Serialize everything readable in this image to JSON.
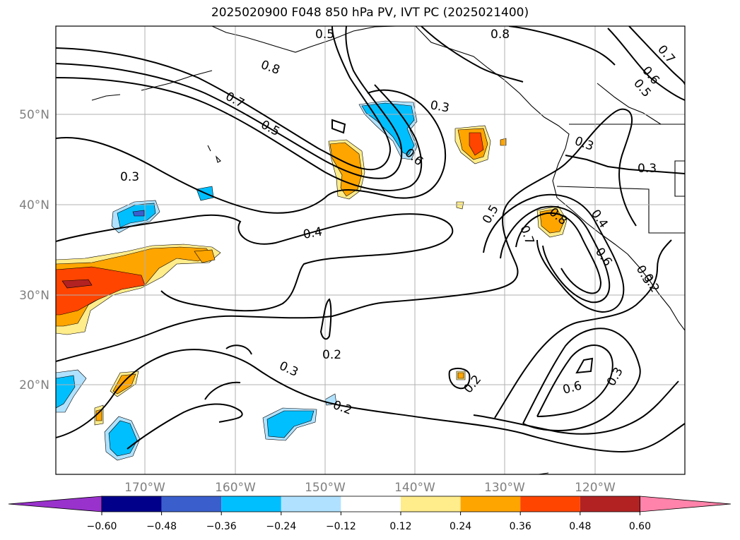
{
  "title": "2025020900 F048 850 hPa PV, IVT PC (2025021400)",
  "map": {
    "lon_labels": [
      "170°W",
      "160°W",
      "150°W",
      "140°W",
      "130°W",
      "120°W"
    ],
    "lat_labels": [
      "50°N",
      "40°N",
      "30°N",
      "20°N"
    ],
    "grid": true,
    "contour_labels": [
      "0.5",
      "0.8",
      "0.8",
      "0.7",
      "0.6",
      "0.5",
      "0.7",
      "0.5",
      "0.3",
      "0.6",
      "0.3",
      "0.3",
      "0.3",
      "0.3",
      "0.5",
      "0.8",
      "0.4",
      "0.7",
      "0.6",
      "0.2",
      "0.4",
      "0.2",
      "0.3",
      "0.2",
      "0.2",
      "0.6",
      "0.3"
    ]
  },
  "colorbar": {
    "ticks": [
      "−0.60",
      "−0.48",
      "−0.36",
      "−0.24",
      "−0.12",
      "0.12",
      "0.24",
      "0.36",
      "0.48",
      "0.60"
    ],
    "colors": [
      "#9932cc",
      "#00008b",
      "#3a5fcd",
      "#00bfff",
      "#b0e2ff",
      "#ffffff",
      "#ffec8b",
      "#ffa500",
      "#ff4500",
      "#b22222",
      "#ff83aa",
      "#ff83aa"
    ],
    "extend": "both"
  }
}
